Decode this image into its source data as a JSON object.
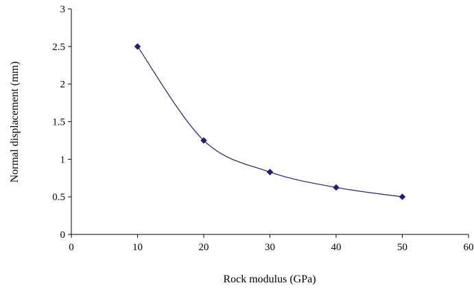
{
  "chart_data": {
    "type": "line",
    "title": "",
    "xlabel": "Rock modulus (GPa)",
    "ylabel": "Normal displacement (mm)",
    "xlim": [
      0,
      60
    ],
    "ylim": [
      0,
      3
    ],
    "x_ticks": [
      "0",
      "10",
      "20",
      "30",
      "40",
      "50",
      "60"
    ],
    "y_ticks": [
      "0",
      "0.5",
      "1",
      "1.5",
      "2",
      "2.5",
      "3"
    ],
    "grid": false,
    "legend": "none",
    "series": [
      {
        "x": [
          10,
          20,
          30,
          40,
          50
        ],
        "y": [
          2.5,
          1.25,
          0.83,
          0.625,
          0.5
        ],
        "line_style": "smooth",
        "marker": "diamond",
        "color": "#1f1f6e"
      }
    ]
  }
}
